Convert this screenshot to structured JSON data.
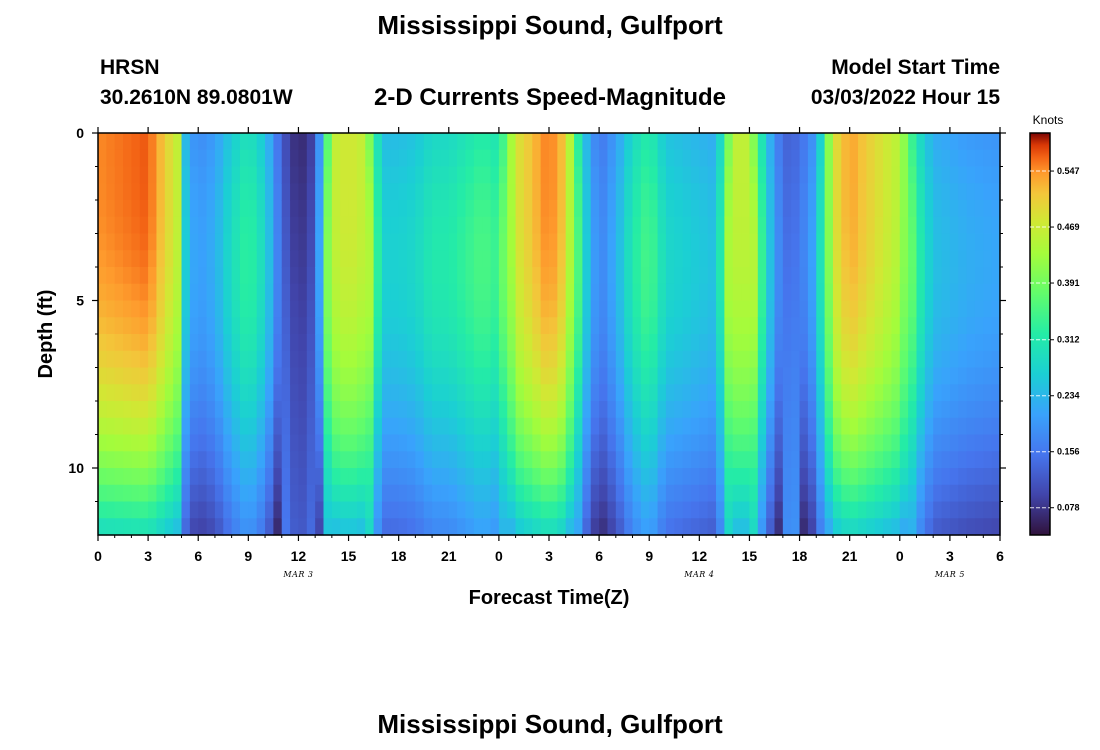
{
  "header": {
    "title": "Mississippi Sound, Gulfport",
    "station": "HRSN",
    "coords": "30.2610N  89.0801W",
    "subtitle": "2-D Currents Speed-Magnitude",
    "model_start_label": "Model Start Time",
    "model_start_value": "03/03/2022 Hour 15",
    "footer_title": "Mississippi Sound, Gulfport"
  },
  "chart_data": {
    "type": "heatmap",
    "title": "2-D Currents Speed-Magnitude",
    "xlabel": "Forecast Time(Z)",
    "ylabel": "Depth (ft)",
    "x_hours_range": [
      0,
      54
    ],
    "y_range": [
      0,
      12
    ],
    "x_tick_labels": [
      "0",
      "3",
      "6",
      "9",
      "12",
      "15",
      "18",
      "21",
      "0",
      "3",
      "6",
      "9",
      "12",
      "15",
      "18",
      "21",
      "0",
      "3",
      "6"
    ],
    "y_tick_labels": [
      "0",
      "5",
      "10"
    ],
    "date_labels": [
      {
        "text": "MAR 3",
        "hour": 12
      },
      {
        "text": "MAR 4",
        "hour": 36
      },
      {
        "text": "MAR 5",
        "hour": 51
      }
    ],
    "colorbar": {
      "units": "Knots",
      "min": 0.04,
      "max": 0.6,
      "ticks": [
        0.078,
        0.156,
        0.234,
        0.312,
        0.391,
        0.469,
        0.547
      ],
      "tick_labels": [
        "0.078",
        "0.156",
        "0.234",
        "0.312",
        "0.391",
        "0.469",
        "0.547"
      ]
    },
    "surface_profile_by_hour": [
      [
        0,
        0.54
      ],
      [
        3,
        0.56
      ],
      [
        4.8,
        0.45
      ],
      [
        5.3,
        0.21
      ],
      [
        6,
        0.18
      ],
      [
        7,
        0.2
      ],
      [
        8,
        0.26
      ],
      [
        9,
        0.3
      ],
      [
        10,
        0.25
      ],
      [
        11,
        0.12
      ],
      [
        12,
        0.06
      ],
      [
        13,
        0.1
      ],
      [
        14,
        0.45
      ],
      [
        15,
        0.47
      ],
      [
        16,
        0.45
      ],
      [
        17,
        0.24
      ],
      [
        18,
        0.24
      ],
      [
        19,
        0.25
      ],
      [
        20,
        0.28
      ],
      [
        21,
        0.28
      ],
      [
        22,
        0.3
      ],
      [
        23,
        0.32
      ],
      [
        24,
        0.3
      ],
      [
        25,
        0.47
      ],
      [
        27,
        0.55
      ],
      [
        28,
        0.5
      ],
      [
        29,
        0.26
      ],
      [
        30,
        0.15
      ],
      [
        31,
        0.2
      ],
      [
        32,
        0.28
      ],
      [
        33,
        0.32
      ],
      [
        34,
        0.25
      ],
      [
        35,
        0.24
      ],
      [
        37,
        0.22
      ],
      [
        38,
        0.45
      ],
      [
        39,
        0.45
      ],
      [
        40,
        0.25
      ],
      [
        41,
        0.13
      ],
      [
        42,
        0.14
      ],
      [
        43,
        0.2
      ],
      [
        44,
        0.47
      ],
      [
        45,
        0.53
      ],
      [
        46,
        0.5
      ],
      [
        48,
        0.44
      ],
      [
        49,
        0.3
      ],
      [
        50,
        0.22
      ],
      [
        52,
        0.2
      ],
      [
        54,
        0.19
      ]
    ]
  }
}
